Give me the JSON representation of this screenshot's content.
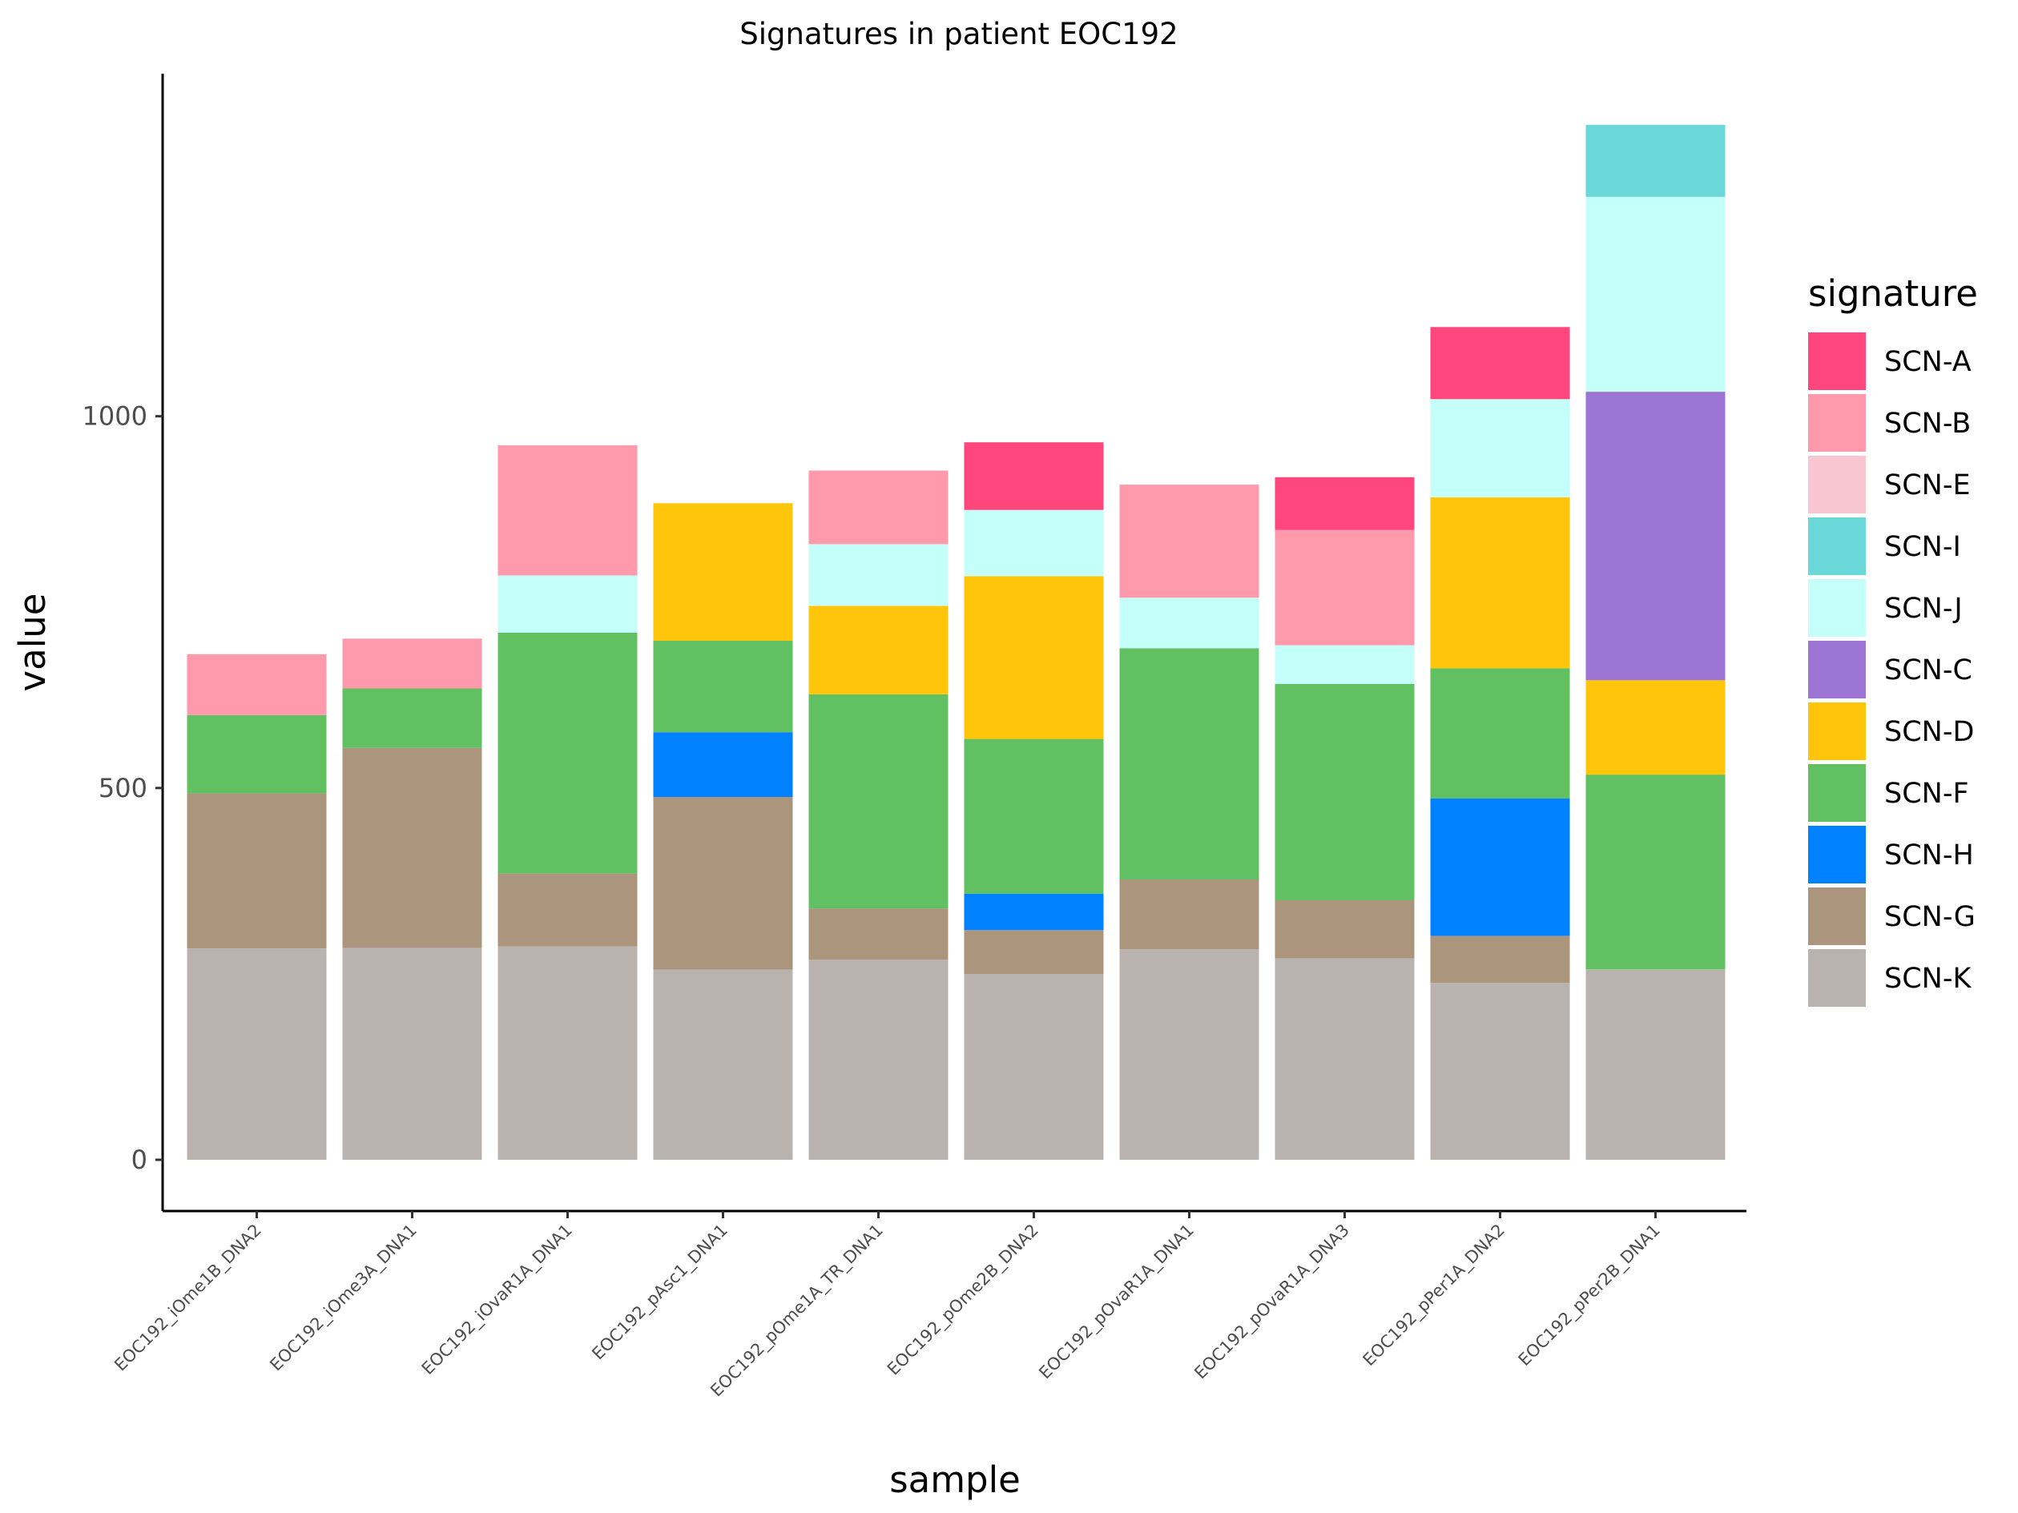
{
  "chart_data": {
    "type": "bar",
    "stacked": true,
    "title": "Signatures in patient EOC192",
    "xlabel": "sample",
    "ylabel": "value",
    "ylim": [
      -60,
      1395
    ],
    "yticks": [
      0,
      500,
      1000
    ],
    "grid": false,
    "legend_position": "right",
    "legend_title": "signature",
    "categories": [
      "EOC192_iOme1B_DNA2",
      "EOC192_iOme3A_DNA1",
      "EOC192_iOvaR1A_DNA1",
      "EOC192_pAsc1_DNA1",
      "EOC192_pOme1A_TR_DNA1",
      "EOC192_pOme2B_DNA2",
      "EOC192_pOvaR1A_DNA1",
      "EOC192_pOvaR1A_DNA3",
      "EOC192_pPer1A_DNA2",
      "EOC192_pPer2B_DNA1"
    ],
    "stack_order": [
      "SCN-K",
      "SCN-G",
      "SCN-H",
      "SCN-F",
      "SCN-D",
      "SCN-C",
      "SCN-J",
      "SCN-I",
      "SCN-E",
      "SCN-B",
      "SCN-A"
    ],
    "series": [
      {
        "name": "SCN-A",
        "color": "#FF477E",
        "values": [
          0,
          0,
          0,
          0,
          0,
          91,
          0,
          71,
          97,
          0
        ]
      },
      {
        "name": "SCN-B",
        "color": "#FF99AC",
        "values": [
          82,
          67,
          175,
          0,
          99,
          0,
          152,
          155,
          0,
          0
        ]
      },
      {
        "name": "SCN-E",
        "color": "#F7C6D0",
        "values": [
          0,
          0,
          0,
          0,
          0,
          0,
          0,
          0,
          0,
          0
        ]
      },
      {
        "name": "SCN-I",
        "color": "#6AD8D8",
        "values": [
          0,
          0,
          0,
          0,
          0,
          0,
          0,
          0,
          0,
          97
        ]
      },
      {
        "name": "SCN-J",
        "color": "#C4FFF9",
        "values": [
          0,
          0,
          77,
          0,
          83,
          89,
          68,
          52,
          132,
          262
        ]
      },
      {
        "name": "SCN-C",
        "color": "#9D75D4",
        "values": [
          0,
          0,
          0,
          0,
          0,
          0,
          0,
          0,
          0,
          388
        ]
      },
      {
        "name": "SCN-D",
        "color": "#FFC50B",
        "values": [
          0,
          0,
          0,
          185,
          119,
          219,
          0,
          0,
          230,
          127
        ]
      },
      {
        "name": "SCN-F",
        "color": "#61C162",
        "values": [
          105,
          80,
          324,
          123,
          288,
          208,
          311,
          291,
          175,
          262
        ]
      },
      {
        "name": "SCN-H",
        "color": "#0081FF",
        "values": [
          0,
          0,
          0,
          87,
          0,
          49,
          0,
          0,
          185,
          0
        ]
      },
      {
        "name": "SCN-G",
        "color": "#AB957C",
        "values": [
          209,
          269,
          98,
          232,
          69,
          59,
          94,
          78,
          63,
          0
        ]
      },
      {
        "name": "SCN-K",
        "color": "#B9B3AF",
        "values": [
          284,
          285,
          287,
          256,
          269,
          250,
          283,
          271,
          238,
          256
        ]
      }
    ]
  }
}
